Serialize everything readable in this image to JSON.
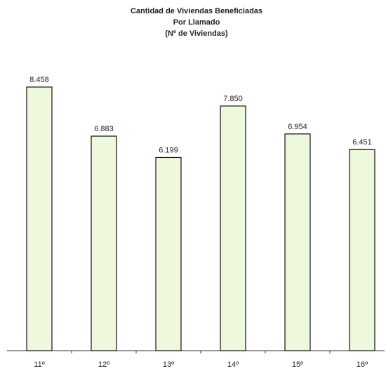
{
  "chart_data": {
    "type": "bar",
    "title": [
      "Cantidad de Viviendas Beneficiadas",
      "Por Llamado",
      "(Nº de Viviendas)"
    ],
    "categories": [
      "11º",
      "12º",
      "13º",
      "14º",
      "15º",
      "16º"
    ],
    "values": [
      8458,
      6883,
      6199,
      7850,
      6954,
      6451
    ],
    "value_labels": [
      "8.458",
      "6.883",
      "6.199",
      "7.850",
      "6.954",
      "6.451"
    ],
    "color": "#eef8dc",
    "ylim": [
      0,
      9000
    ]
  }
}
